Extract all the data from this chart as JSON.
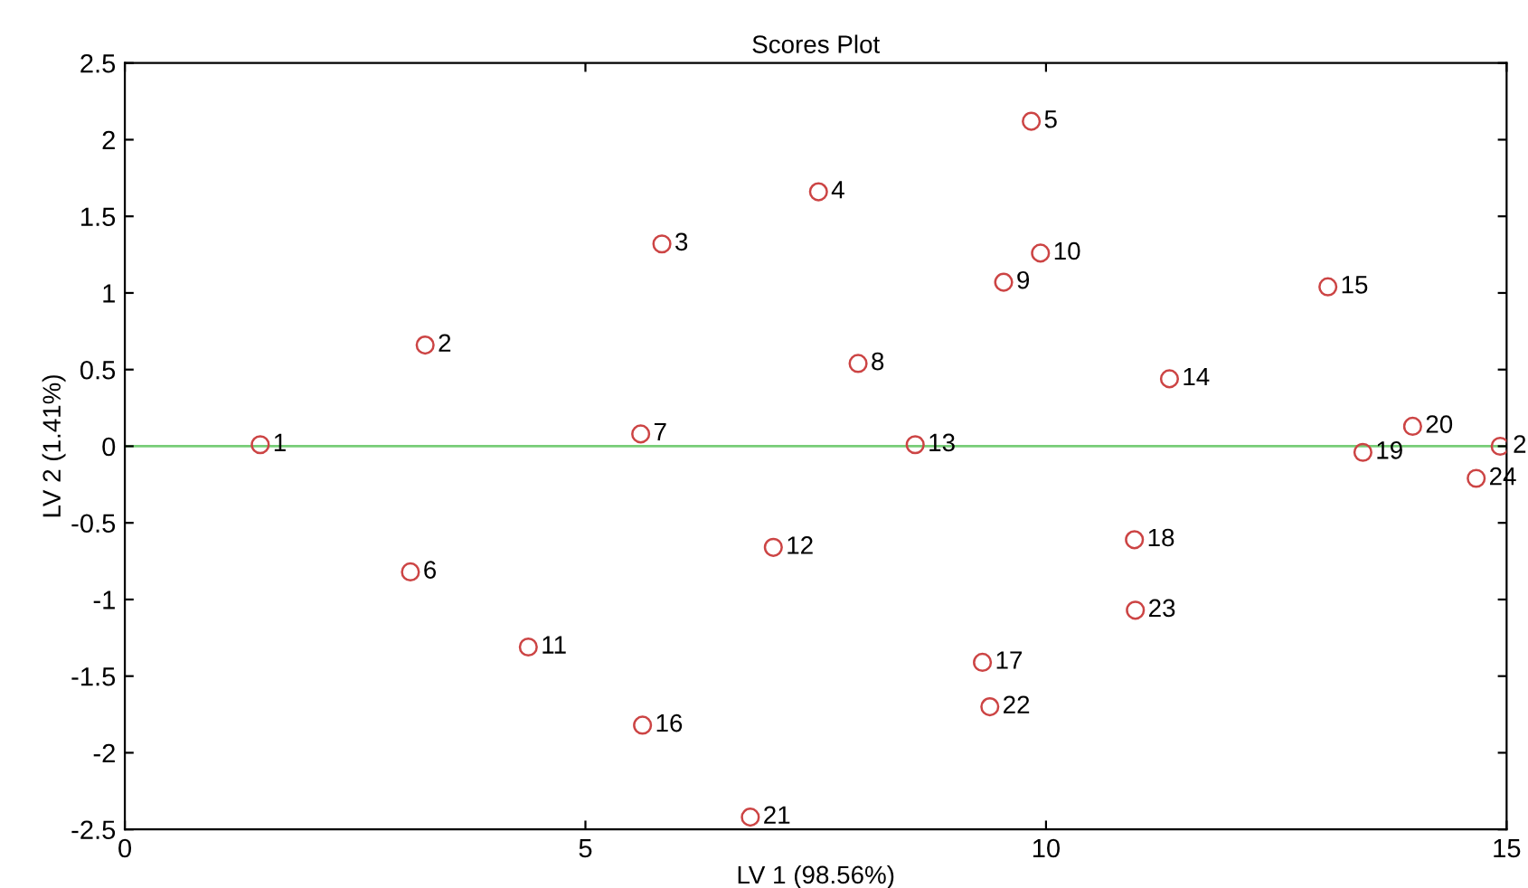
{
  "chart_data": {
    "type": "scatter",
    "title": "Scores Plot",
    "xlabel": "LV 1 (98.56%)",
    "ylabel": "LV 2 (1.41%)",
    "x": [
      1.47,
      3.26,
      5.83,
      7.53,
      9.84,
      3.1,
      5.6,
      7.96,
      9.54,
      9.94,
      4.38,
      7.04,
      8.58,
      11.34,
      13.06,
      5.62,
      9.31,
      10.96,
      13.44,
      13.98,
      6.79,
      9.39,
      10.97,
      14.67,
      14.93
    ],
    "values": [
      0.01,
      0.66,
      1.32,
      1.66,
      2.12,
      -0.82,
      0.08,
      0.54,
      1.07,
      1.26,
      -1.31,
      -0.66,
      0.01,
      0.44,
      1.04,
      -1.82,
      -1.41,
      -0.61,
      -0.04,
      0.13,
      -2.42,
      -1.7,
      -1.07,
      -0.21,
      0.0
    ],
    "annotations": [
      {
        "text": "1",
        "x": 1.47,
        "y": 0.01
      },
      {
        "text": "2",
        "x": 3.26,
        "y": 0.66
      },
      {
        "text": "3",
        "x": 5.83,
        "y": 1.32
      },
      {
        "text": "4",
        "x": 7.53,
        "y": 1.66
      },
      {
        "text": "5",
        "x": 9.84,
        "y": 2.12
      },
      {
        "text": "6",
        "x": 3.1,
        "y": -0.82
      },
      {
        "text": "7",
        "x": 5.6,
        "y": 0.08
      },
      {
        "text": "8",
        "x": 7.96,
        "y": 0.54
      },
      {
        "text": "9",
        "x": 9.54,
        "y": 1.07
      },
      {
        "text": "10",
        "x": 9.94,
        "y": 1.26
      },
      {
        "text": "11",
        "x": 4.38,
        "y": -1.31
      },
      {
        "text": "12",
        "x": 7.04,
        "y": -0.66
      },
      {
        "text": "13",
        "x": 8.58,
        "y": 0.01
      },
      {
        "text": "14",
        "x": 11.34,
        "y": 0.44
      },
      {
        "text": "15",
        "x": 13.06,
        "y": 1.04
      },
      {
        "text": "16",
        "x": 5.62,
        "y": -1.82
      },
      {
        "text": "17",
        "x": 9.31,
        "y": -1.41
      },
      {
        "text": "18",
        "x": 10.96,
        "y": -0.61
      },
      {
        "text": "19",
        "x": 13.44,
        "y": -0.04
      },
      {
        "text": "20",
        "x": 13.98,
        "y": 0.13
      },
      {
        "text": "21",
        "x": 6.79,
        "y": -2.42
      },
      {
        "text": "22",
        "x": 9.39,
        "y": -1.7
      },
      {
        "text": "23",
        "x": 10.97,
        "y": -1.07
      },
      {
        "text": "24",
        "x": 14.67,
        "y": -0.21
      },
      {
        "text": "2",
        "x": 14.93,
        "y": 0.0
      }
    ],
    "color": "#cc4444",
    "marker": "circle",
    "xlim": [
      0,
      15
    ],
    "xticks": [
      0,
      5,
      10,
      15
    ],
    "ylim": [
      -2.5,
      2.5
    ],
    "yticks": [
      -2.5,
      -2,
      -1.5,
      -1,
      -0.5,
      0,
      0.5,
      1,
      1.5,
      2,
      2.5
    ],
    "ref_lines": [
      {
        "axis": "y",
        "value": 0,
        "color": "#77cc77"
      }
    ],
    "grid": false
  }
}
